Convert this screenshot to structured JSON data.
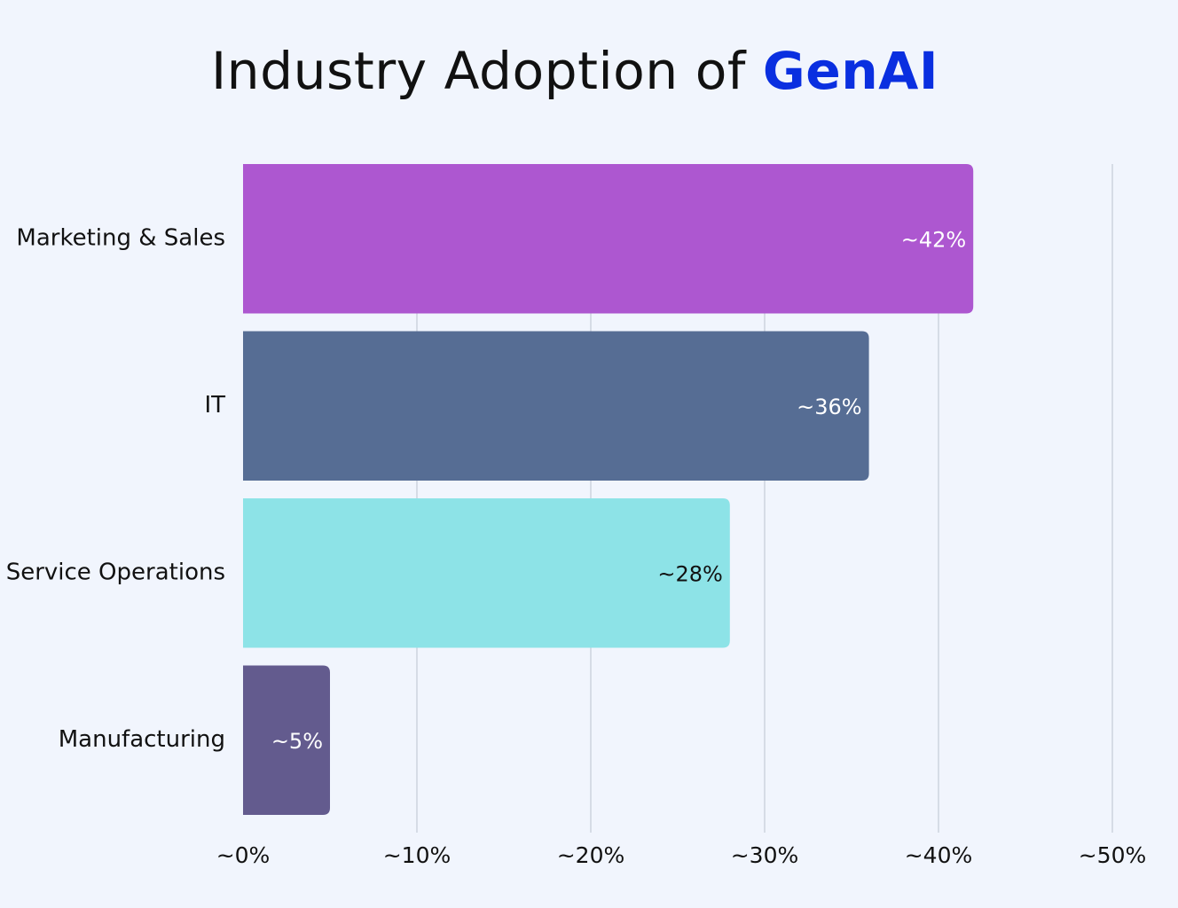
{
  "title": {
    "prefix": "Industry Adoption of ",
    "highlight": "GenAI",
    "highlight_color": "#0a2fe0"
  },
  "chart_data": {
    "type": "bar",
    "orientation": "horizontal",
    "categories": [
      "Marketing & Sales",
      "IT",
      "Service Operations",
      "Manufacturing"
    ],
    "values": [
      42,
      36,
      28,
      5
    ],
    "value_labels": [
      "~42%",
      "~36%",
      "~28%",
      "~5%"
    ],
    "colors": [
      "#ad57d0",
      "#566d94",
      "#8de3e7",
      "#635b8e"
    ],
    "label_colors": [
      "#ffffff",
      "#ffffff",
      "#111111",
      "#ffffff"
    ],
    "xlim": [
      0,
      50
    ],
    "x_ticks": [
      0,
      10,
      20,
      30,
      40,
      50
    ],
    "x_tick_labels": [
      "~0%",
      "~10%",
      "~20%",
      "~30%",
      "~40%",
      "~50%"
    ],
    "grid": "vertical",
    "legend": "none"
  }
}
